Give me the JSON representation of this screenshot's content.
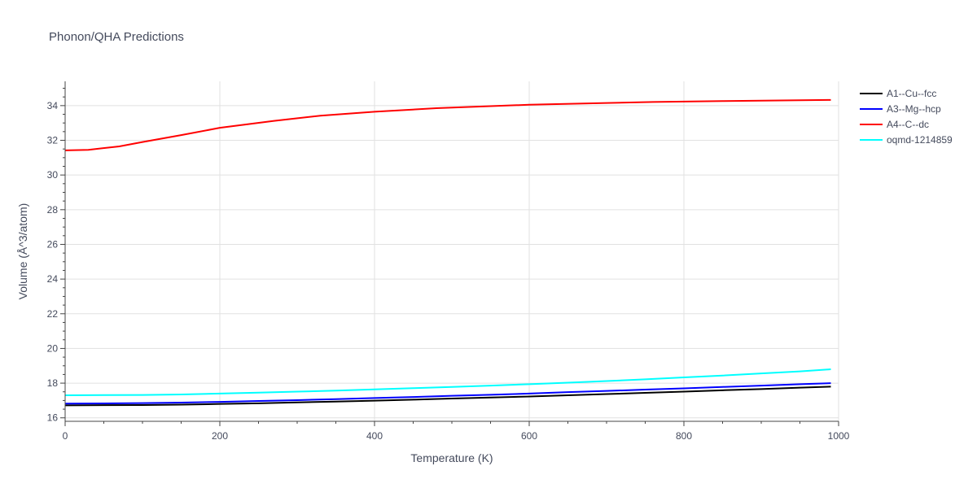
{
  "chart_data": {
    "type": "line",
    "title": "Phonon/QHA Predictions",
    "xlabel": "Temperature (K)",
    "ylabel": "Volume (Å^3/atom)",
    "xlim": [
      0,
      1000
    ],
    "ylim": [
      15.8,
      35.4
    ],
    "xticks": [
      0,
      200,
      400,
      600,
      800,
      1000
    ],
    "yticks": [
      16,
      18,
      20,
      22,
      24,
      26,
      28,
      30,
      32,
      34
    ],
    "grid": true,
    "legend_position": "top-right-outside",
    "series": [
      {
        "name": "A1--Cu--fcc",
        "color": "#000000",
        "x": [
          0,
          50,
          100,
          150,
          200,
          250,
          300,
          350,
          400,
          450,
          500,
          550,
          600,
          650,
          700,
          750,
          800,
          850,
          900,
          950,
          990
        ],
        "y": [
          16.72,
          16.73,
          16.74,
          16.76,
          16.8,
          16.84,
          16.89,
          16.94,
          16.99,
          17.05,
          17.11,
          17.17,
          17.23,
          17.3,
          17.37,
          17.44,
          17.51,
          17.59,
          17.66,
          17.74,
          17.8
        ]
      },
      {
        "name": "A3--Mg--hcp",
        "color": "#0000ff",
        "x": [
          0,
          50,
          100,
          150,
          200,
          250,
          300,
          350,
          400,
          450,
          500,
          550,
          600,
          650,
          700,
          750,
          800,
          850,
          900,
          950,
          990
        ],
        "y": [
          16.82,
          16.83,
          16.85,
          16.88,
          16.92,
          16.97,
          17.02,
          17.08,
          17.14,
          17.2,
          17.27,
          17.33,
          17.4,
          17.48,
          17.55,
          17.63,
          17.7,
          17.78,
          17.86,
          17.94,
          18.0
        ]
      },
      {
        "name": "A4--C--dc",
        "color": "#ff0000",
        "x": [
          0,
          30,
          70,
          100,
          150,
          200,
          270,
          330,
          400,
          480,
          550,
          600,
          700,
          760,
          850,
          990
        ],
        "y": [
          31.42,
          31.45,
          31.65,
          31.9,
          32.3,
          32.72,
          33.12,
          33.42,
          33.65,
          33.85,
          33.97,
          34.05,
          34.15,
          34.21,
          34.26,
          34.33
        ]
      },
      {
        "name": "oqmd-1214859",
        "color": "#00ffff",
        "x": [
          0,
          50,
          100,
          150,
          200,
          250,
          300,
          350,
          400,
          450,
          500,
          550,
          600,
          650,
          700,
          750,
          800,
          850,
          900,
          950,
          990
        ],
        "y": [
          17.3,
          17.31,
          17.32,
          17.35,
          17.4,
          17.45,
          17.51,
          17.57,
          17.64,
          17.71,
          17.78,
          17.86,
          17.94,
          18.03,
          18.12,
          18.22,
          18.33,
          18.44,
          18.56,
          18.68,
          18.8
        ]
      }
    ]
  }
}
